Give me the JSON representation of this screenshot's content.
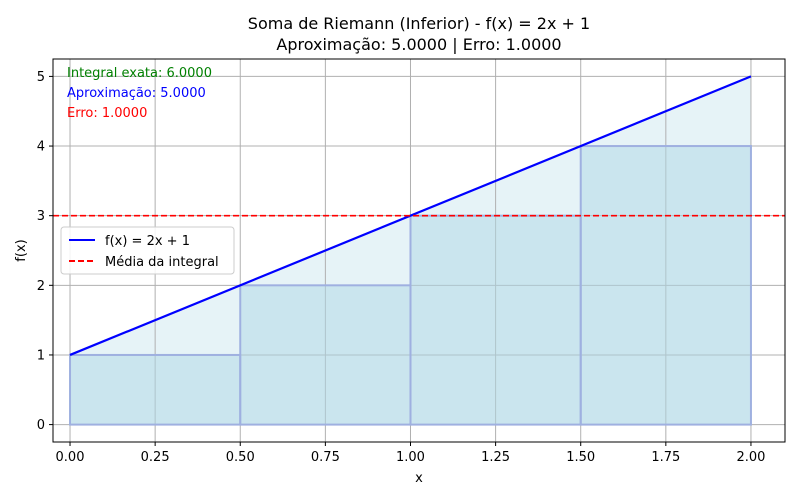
{
  "chart_data": {
    "type": "line",
    "title": "Soma de Riemann (Inferior) - f(x) = 2x + 1",
    "subtitle": "Aproximação: 5.0000 | Erro: 1.0000",
    "xlabel": "x",
    "ylabel": "f(x)",
    "xlim": [
      -0.05,
      2.1
    ],
    "ylim": [
      -0.25,
      5.25
    ],
    "grid": true,
    "x_ticks": [
      0.0,
      0.25,
      0.5,
      0.75,
      1.0,
      1.25,
      1.5,
      1.75,
      2.0
    ],
    "x_tick_labels": [
      "0.00",
      "0.25",
      "0.50",
      "0.75",
      "1.00",
      "1.25",
      "1.50",
      "1.75",
      "2.00"
    ],
    "y_ticks": [
      0,
      1,
      2,
      3,
      4,
      5
    ],
    "y_tick_labels": [
      "0",
      "1",
      "2",
      "3",
      "4",
      "5"
    ],
    "series": [
      {
        "name": "f(x) = 2x + 1",
        "color": "#0000ff",
        "style": "solid",
        "x": [
          0.0,
          2.0
        ],
        "y": [
          1.0,
          5.0
        ]
      },
      {
        "name": "Média da integral",
        "color": "#ff0000",
        "style": "dashed",
        "y_constant": 3.0
      }
    ],
    "rectangles": [
      {
        "x": 0.0,
        "width": 0.5,
        "height": 1.0
      },
      {
        "x": 0.5,
        "width": 0.5,
        "height": 2.0
      },
      {
        "x": 1.0,
        "width": 0.5,
        "height": 3.0
      },
      {
        "x": 1.5,
        "width": 0.5,
        "height": 4.0
      }
    ],
    "rectangle_fill": "#add8e6",
    "area_fill": "#add8e6",
    "annotations": [
      {
        "text": "Integral exata: 6.0000",
        "color": "#008000"
      },
      {
        "text": "Aproximação: 5.0000",
        "color": "#0000ff"
      },
      {
        "text": "Erro: 1.0000",
        "color": "#ff0000"
      }
    ],
    "legend_position": "center-left"
  }
}
